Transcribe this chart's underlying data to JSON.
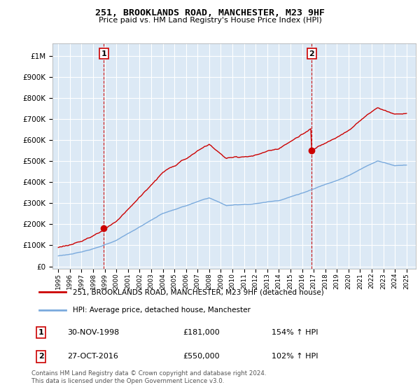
{
  "title": "251, BROOKLANDS ROAD, MANCHESTER, M23 9HF",
  "subtitle": "Price paid vs. HM Land Registry's House Price Index (HPI)",
  "legend_line1": "251, BROOKLANDS ROAD, MANCHESTER, M23 9HF (detached house)",
  "legend_line2": "HPI: Average price, detached house, Manchester",
  "annotation1_label": "1",
  "annotation1_date": "30-NOV-1998",
  "annotation1_price": "£181,000",
  "annotation1_hpi": "154% ↑ HPI",
  "annotation2_label": "2",
  "annotation2_date": "27-OCT-2016",
  "annotation2_price": "£550,000",
  "annotation2_hpi": "102% ↑ HPI",
  "footer": "Contains HM Land Registry data © Crown copyright and database right 2024.\nThis data is licensed under the Open Government Licence v3.0.",
  "price_color": "#cc0000",
  "hpi_color": "#7aaadd",
  "ylim_min": 0,
  "ylim_max": 1050000,
  "plot_bg_color": "#dce9f5",
  "background_color": "#ffffff",
  "grid_color": "#ffffff",
  "sale1_year": 1998.92,
  "sale1_price": 181000,
  "sale2_year": 2016.83,
  "sale2_price": 550000
}
